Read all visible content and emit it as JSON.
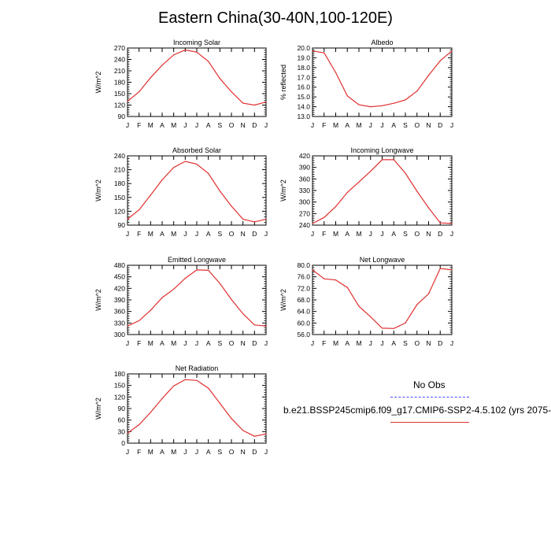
{
  "title": "Eastern China(30-40N,100-120E)",
  "legend": {
    "obs_label": "No Obs",
    "model_label": "b.e21.BSSP245cmip6.f09_g17.CMIP6-SSP2-4.5.102 (yrs 2075-",
    "obs_color": "#4b4bff",
    "model_color": "#e03030"
  },
  "chart_data": [
    {
      "type": "line",
      "title": "Incoming Solar",
      "ylabel": "W/m^2",
      "categories": [
        "J",
        "F",
        "M",
        "A",
        "M",
        "J",
        "J",
        "A",
        "S",
        "O",
        "N",
        "D",
        "J"
      ],
      "values": [
        130,
        155,
        192,
        225,
        252,
        265,
        259,
        235,
        190,
        155,
        125,
        120,
        128
      ],
      "ylim": [
        90,
        270
      ],
      "yticks": [
        90,
        120,
        150,
        180,
        210,
        240,
        270
      ],
      "ytick_labels": [
        "90",
        "120",
        "150",
        "180",
        "210",
        "240",
        "270"
      ]
    },
    {
      "type": "line",
      "title": "Albedo",
      "ylabel": "% reflected",
      "categories": [
        "J",
        "F",
        "M",
        "A",
        "M",
        "J",
        "J",
        "A",
        "S",
        "O",
        "N",
        "D",
        "J"
      ],
      "values": [
        19.7,
        19.5,
        17.5,
        15.1,
        14.2,
        14.0,
        14.1,
        14.35,
        14.7,
        15.6,
        17.2,
        18.7,
        19.7
      ],
      "ylim": [
        13.0,
        20.0
      ],
      "yticks": [
        13.0,
        14.0,
        15.0,
        16.0,
        17.0,
        18.0,
        19.0,
        20.0
      ],
      "ytick_labels": [
        "13.0",
        "14.0",
        "15.0",
        "16.0",
        "17.0",
        "18.0",
        "19.0",
        "20.0"
      ]
    },
    {
      "type": "line",
      "title": "Absorbed Solar",
      "ylabel": "W/m^2",
      "categories": [
        "J",
        "F",
        "M",
        "A",
        "M",
        "J",
        "J",
        "A",
        "S",
        "O",
        "N",
        "D",
        "J"
      ],
      "values": [
        103,
        123,
        155,
        188,
        215,
        228,
        222,
        202,
        164,
        131,
        103,
        97,
        103
      ],
      "ylim": [
        90,
        240
      ],
      "yticks": [
        90,
        120,
        150,
        180,
        210,
        240
      ],
      "ytick_labels": [
        "90",
        "120",
        "150",
        "180",
        "210",
        "240"
      ]
    },
    {
      "type": "line",
      "title": "Incoming Longwave",
      "ylabel": "W/m^2",
      "categories": [
        "J",
        "F",
        "M",
        "A",
        "M",
        "J",
        "J",
        "A",
        "S",
        "O",
        "N",
        "D",
        "J"
      ],
      "values": [
        244,
        260,
        288,
        325,
        352,
        380,
        410,
        410,
        375,
        328,
        285,
        246,
        244
      ],
      "ylim": [
        240,
        420
      ],
      "yticks": [
        240,
        270,
        300,
        330,
        360,
        390,
        420
      ],
      "ytick_labels": [
        "240",
        "270",
        "300",
        "330",
        "360",
        "390",
        "420"
      ]
    },
    {
      "type": "line",
      "title": "Emitted Longwave",
      "ylabel": "W/m^2",
      "categories": [
        "J",
        "F",
        "M",
        "A",
        "M",
        "J",
        "J",
        "A",
        "S",
        "O",
        "N",
        "D",
        "J"
      ],
      "values": [
        322,
        336,
        363,
        396,
        418,
        446,
        468,
        467,
        433,
        391,
        354,
        325,
        322
      ],
      "ylim": [
        300,
        480
      ],
      "yticks": [
        300,
        330,
        360,
        390,
        420,
        450,
        480
      ],
      "ytick_labels": [
        "300",
        "330",
        "360",
        "390",
        "420",
        "450",
        "480"
      ]
    },
    {
      "type": "line",
      "title": "Net Longwave",
      "ylabel": "W/m^2",
      "categories": [
        "J",
        "F",
        "M",
        "A",
        "M",
        "J",
        "J",
        "A",
        "S",
        "O",
        "N",
        "D",
        "J"
      ],
      "values": [
        78.4,
        75.3,
        74.9,
        72.3,
        65.8,
        62.1,
        58.2,
        58.1,
        60.0,
        66.4,
        70.1,
        78.9,
        78.4
      ],
      "ylim": [
        56.0,
        80.0
      ],
      "yticks": [
        56.0,
        60.0,
        64.0,
        68.0,
        72.0,
        76.0,
        80.0
      ],
      "ytick_labels": [
        "56.0",
        "60.0",
        "64.0",
        "68.0",
        "72.0",
        "76.0",
        "80.0"
      ]
    },
    {
      "type": "line",
      "title": "Net Radiation",
      "ylabel": "W/m^2",
      "categories": [
        "J",
        "F",
        "M",
        "A",
        "M",
        "J",
        "J",
        "A",
        "S",
        "O",
        "N",
        "D",
        "J"
      ],
      "values": [
        26,
        48,
        80,
        116,
        149,
        165,
        163,
        143,
        104,
        64,
        33,
        18,
        24
      ],
      "ylim": [
        0,
        180
      ],
      "yticks": [
        0,
        30,
        60,
        90,
        120,
        150,
        180
      ],
      "ytick_labels": [
        "0",
        "30",
        "60",
        "90",
        "120",
        "150",
        "180"
      ]
    }
  ]
}
